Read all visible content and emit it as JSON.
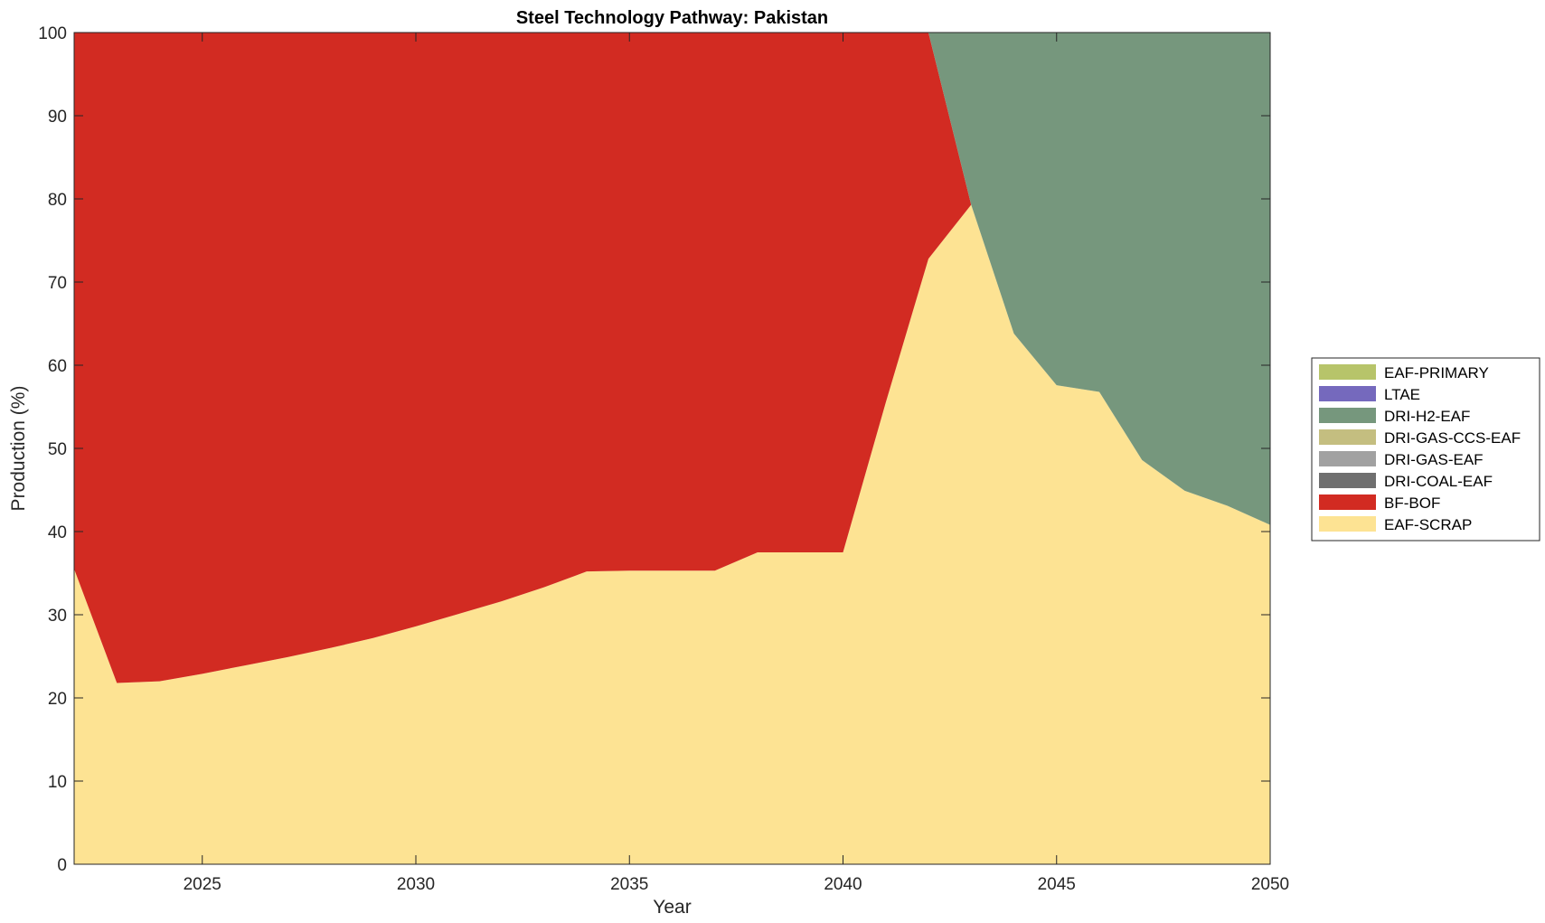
{
  "chart_data": {
    "type": "area",
    "title": "Steel Technology Pathway: Pakistan",
    "xlabel": "Year",
    "ylabel": "Production (%)",
    "xlim": [
      2022,
      2050
    ],
    "ylim": [
      0,
      100
    ],
    "xticks": [
      2025,
      2030,
      2035,
      2040,
      2045,
      2050
    ],
    "yticks": [
      0,
      10,
      20,
      30,
      40,
      50,
      60,
      70,
      80,
      90,
      100
    ],
    "grid": false,
    "legend_position": "right",
    "x": [
      2022,
      2023,
      2024,
      2025,
      2026,
      2027,
      2028,
      2029,
      2030,
      2031,
      2032,
      2033,
      2034,
      2035,
      2036,
      2037,
      2038,
      2039,
      2040,
      2041,
      2042,
      2043,
      2044,
      2045,
      2046,
      2047,
      2048,
      2049,
      2050
    ],
    "series": [
      {
        "name": "EAF-SCRAP",
        "color": "#fde393",
        "values": [
          35.5,
          21.8,
          22.0,
          22.9,
          23.9,
          24.9,
          26.0,
          27.2,
          28.6,
          30.1,
          31.6,
          33.3,
          35.2,
          35.3,
          35.3,
          35.3,
          37.5,
          37.5,
          37.5,
          55.5,
          72.8,
          79.3,
          63.8,
          57.6,
          56.8,
          48.6,
          44.9,
          43.1,
          40.8
        ]
      },
      {
        "name": "BF-BOF",
        "color": "#d22b22",
        "values": [
          64.5,
          78.2,
          78.0,
          77.1,
          76.1,
          75.1,
          74.0,
          72.8,
          71.4,
          69.9,
          68.4,
          66.7,
          64.8,
          64.7,
          64.7,
          64.7,
          62.5,
          62.5,
          62.5,
          44.5,
          27.2,
          0,
          0,
          0,
          0,
          0,
          0,
          0,
          0
        ]
      },
      {
        "name": "DRI-COAL-EAF",
        "color": "#6f6f6f",
        "values": [
          0,
          0,
          0,
          0,
          0,
          0,
          0,
          0,
          0,
          0,
          0,
          0,
          0,
          0,
          0,
          0,
          0,
          0,
          0,
          0,
          0,
          0,
          0,
          0,
          0,
          0,
          0,
          0,
          0
        ]
      },
      {
        "name": "DRI-GAS-EAF",
        "color": "#a1a1a1",
        "values": [
          0,
          0,
          0,
          0,
          0,
          0,
          0,
          0,
          0,
          0,
          0,
          0,
          0,
          0,
          0,
          0,
          0,
          0,
          0,
          0,
          0,
          0,
          0,
          0,
          0,
          0,
          0,
          0,
          0
        ]
      },
      {
        "name": "DRI-GAS-CCS-EAF",
        "color": "#c4be80",
        "values": [
          0,
          0,
          0,
          0,
          0,
          0,
          0,
          0,
          0,
          0,
          0,
          0,
          0,
          0,
          0,
          0,
          0,
          0,
          0,
          0,
          0,
          0,
          0,
          0,
          0,
          0,
          0,
          0,
          0
        ]
      },
      {
        "name": "DRI-H2-EAF",
        "color": "#76977d",
        "values": [
          0,
          0,
          0,
          0,
          0,
          0,
          0,
          0,
          0,
          0,
          0,
          0,
          0,
          0,
          0,
          0,
          0,
          0,
          0,
          0,
          0,
          20.7,
          36.2,
          42.4,
          43.2,
          51.4,
          55.1,
          56.9,
          59.2
        ]
      },
      {
        "name": "LTAE",
        "color": "#7569bd",
        "values": [
          0,
          0,
          0,
          0,
          0,
          0,
          0,
          0,
          0,
          0,
          0,
          0,
          0,
          0,
          0,
          0,
          0,
          0,
          0,
          0,
          0,
          0,
          0,
          0,
          0,
          0,
          0,
          0,
          0
        ]
      },
      {
        "name": "EAF-PRIMARY",
        "color": "#b7c46a",
        "values": [
          0,
          0,
          0,
          0,
          0,
          0,
          0,
          0,
          0,
          0,
          0,
          0,
          0,
          0,
          0,
          0,
          0,
          0,
          0,
          0,
          0,
          0,
          0,
          0,
          0,
          0,
          0,
          0,
          0
        ]
      }
    ],
    "legend_order": [
      "EAF-PRIMARY",
      "LTAE",
      "DRI-H2-EAF",
      "DRI-GAS-CCS-EAF",
      "DRI-GAS-EAF",
      "DRI-COAL-EAF",
      "BF-BOF",
      "EAF-SCRAP"
    ]
  }
}
